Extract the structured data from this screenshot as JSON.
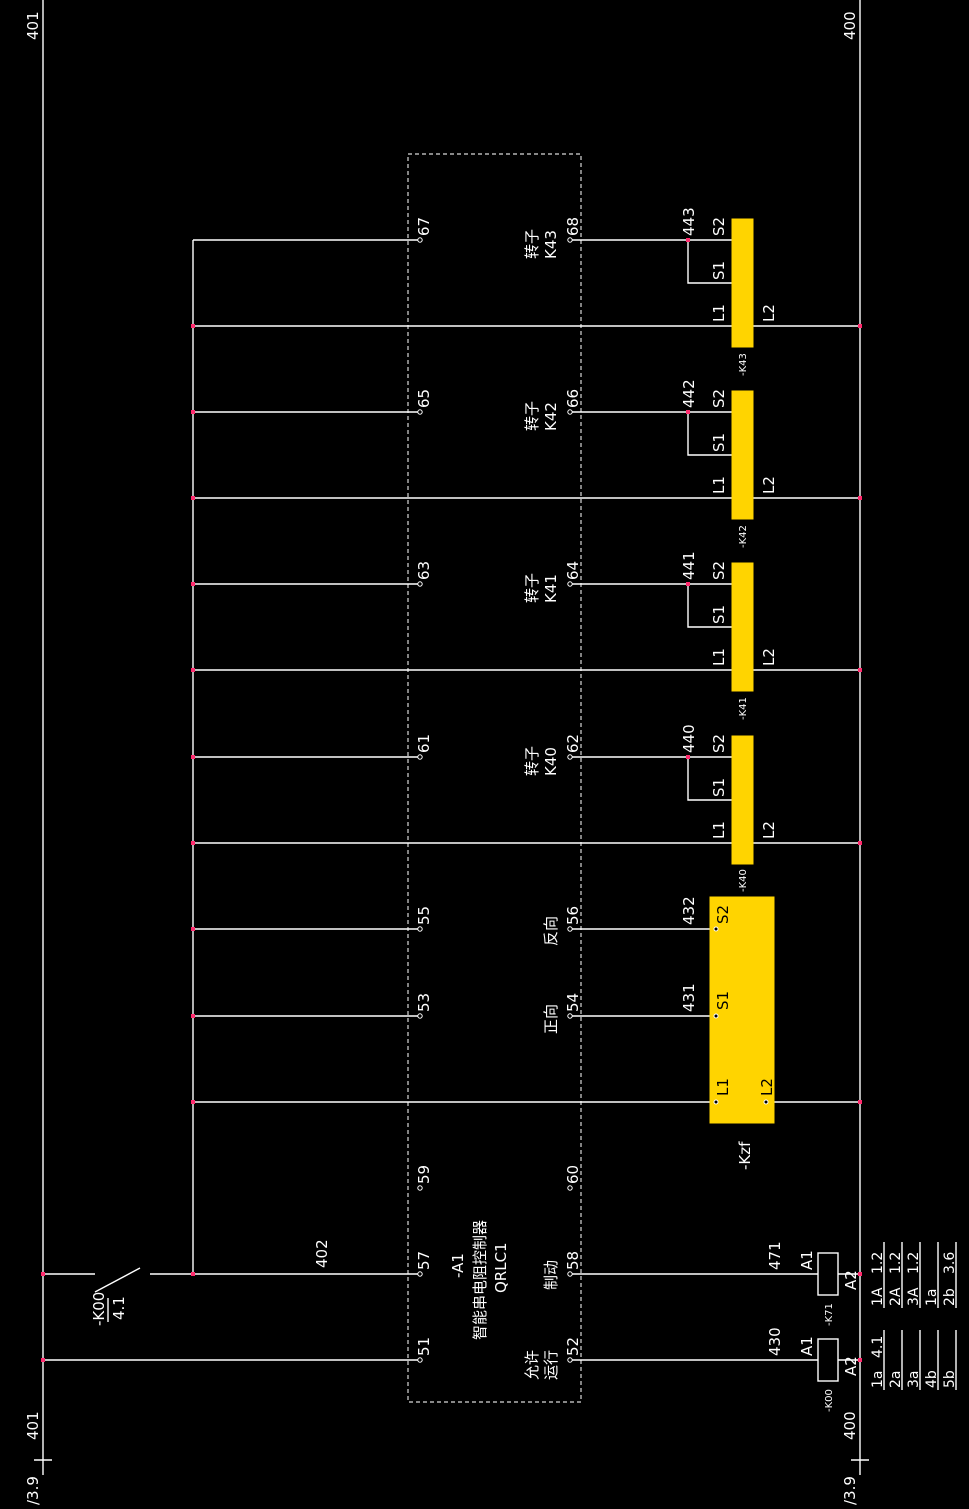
{
  "colors": {
    "background": "#000000",
    "wire": "#ffffff",
    "relay_fill": "#FFD400",
    "junction": "#ff2a6d"
  },
  "rails": {
    "left_label": "401",
    "right_label": "400",
    "left_ref": "/3.9",
    "right_ref": "/3.9"
  },
  "contact_k00": {
    "name": "-K00",
    "ref": "4.1"
  },
  "wire_labels": {
    "w402": "402",
    "w471": "471",
    "w430": "430"
  },
  "controller": {
    "name": "-A1",
    "desc": "智能串电阻控制器",
    "model": "QRLC1",
    "terminals": {
      "t51": "51",
      "t52": "52",
      "t53": "53",
      "t54": "54",
      "t55": "55",
      "t56": "56",
      "t57": "57",
      "t58": "58",
      "t59": "59",
      "t60": "60",
      "t61": "61",
      "t62": "62",
      "t63": "63",
      "t64": "64",
      "t65": "65",
      "t66": "66",
      "t67": "67",
      "t68": "68"
    },
    "functions": {
      "allow_run_1": "允许",
      "allow_run_2": "运行",
      "brake": "制动",
      "forward": "正向",
      "reverse": "反向",
      "rotor_k40_1": "转子",
      "rotor_k40_2": "K40",
      "rotor_k41_1": "转子",
      "rotor_k41_2": "K41",
      "rotor_k42_1": "转子",
      "rotor_k42_2": "K42",
      "rotor_k43_1": "转子",
      "rotor_k43_2": "K43"
    }
  },
  "kzf": {
    "name": "-Kzf",
    "pins": {
      "L1": "L1",
      "L2": "L2",
      "S1": "S1",
      "S2": "S2"
    },
    "wires": {
      "s1": "431",
      "s2": "432"
    }
  },
  "rotor_relays": [
    {
      "name": "-K40",
      "wire": "440",
      "S1": "S1",
      "S2": "S2",
      "L1": "L1",
      "L2": "L2"
    },
    {
      "name": "-K41",
      "wire": "441",
      "S1": "S1",
      "S2": "S2",
      "L1": "L1",
      "L2": "L2"
    },
    {
      "name": "-K42",
      "wire": "442",
      "S1": "S1",
      "S2": "S2",
      "L1": "L1",
      "L2": "L2"
    },
    {
      "name": "-K43",
      "wire": "443",
      "S1": "S1",
      "S2": "S2",
      "L1": "L1",
      "L2": "L2"
    }
  ],
  "coils": {
    "k00": {
      "name": "-K00",
      "a1": "A1",
      "a2": "A2"
    },
    "k71": {
      "name": "-K71",
      "a1": "A1",
      "a2": "A2"
    }
  },
  "xref_k00": [
    [
      "1a",
      "4.1"
    ],
    [
      "2a",
      ""
    ],
    [
      "3a",
      ""
    ],
    [
      "4b",
      ""
    ],
    [
      "5b",
      ""
    ]
  ],
  "xref_k71": [
    [
      "1A",
      "1.2"
    ],
    [
      "2A",
      "1.2"
    ],
    [
      "3A",
      "1.2"
    ],
    [
      "1a",
      ""
    ],
    [
      "2b",
      "3.6"
    ]
  ]
}
